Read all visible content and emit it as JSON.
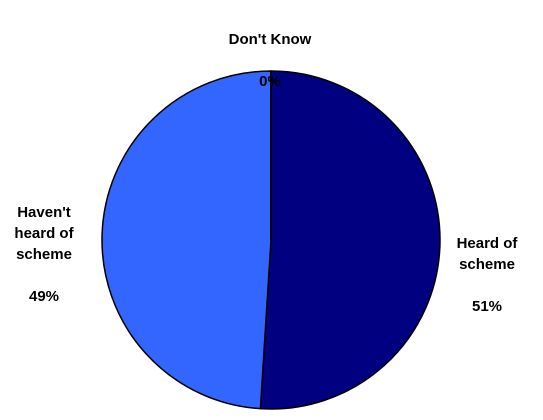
{
  "chart_data": {
    "type": "pie",
    "slices": [
      {
        "label": "Heard of\nscheme",
        "value": 51,
        "display": "51%",
        "color": "#000080"
      },
      {
        "label": "Haven't\nheard of\nscheme",
        "value": 49,
        "display": "49%",
        "color": "#3366ff"
      },
      {
        "label": "Don't Know",
        "value": 0,
        "display": "0%",
        "color": "#000080"
      }
    ],
    "start_angle_deg": -90,
    "direction": "clockwise",
    "legend": "none"
  }
}
